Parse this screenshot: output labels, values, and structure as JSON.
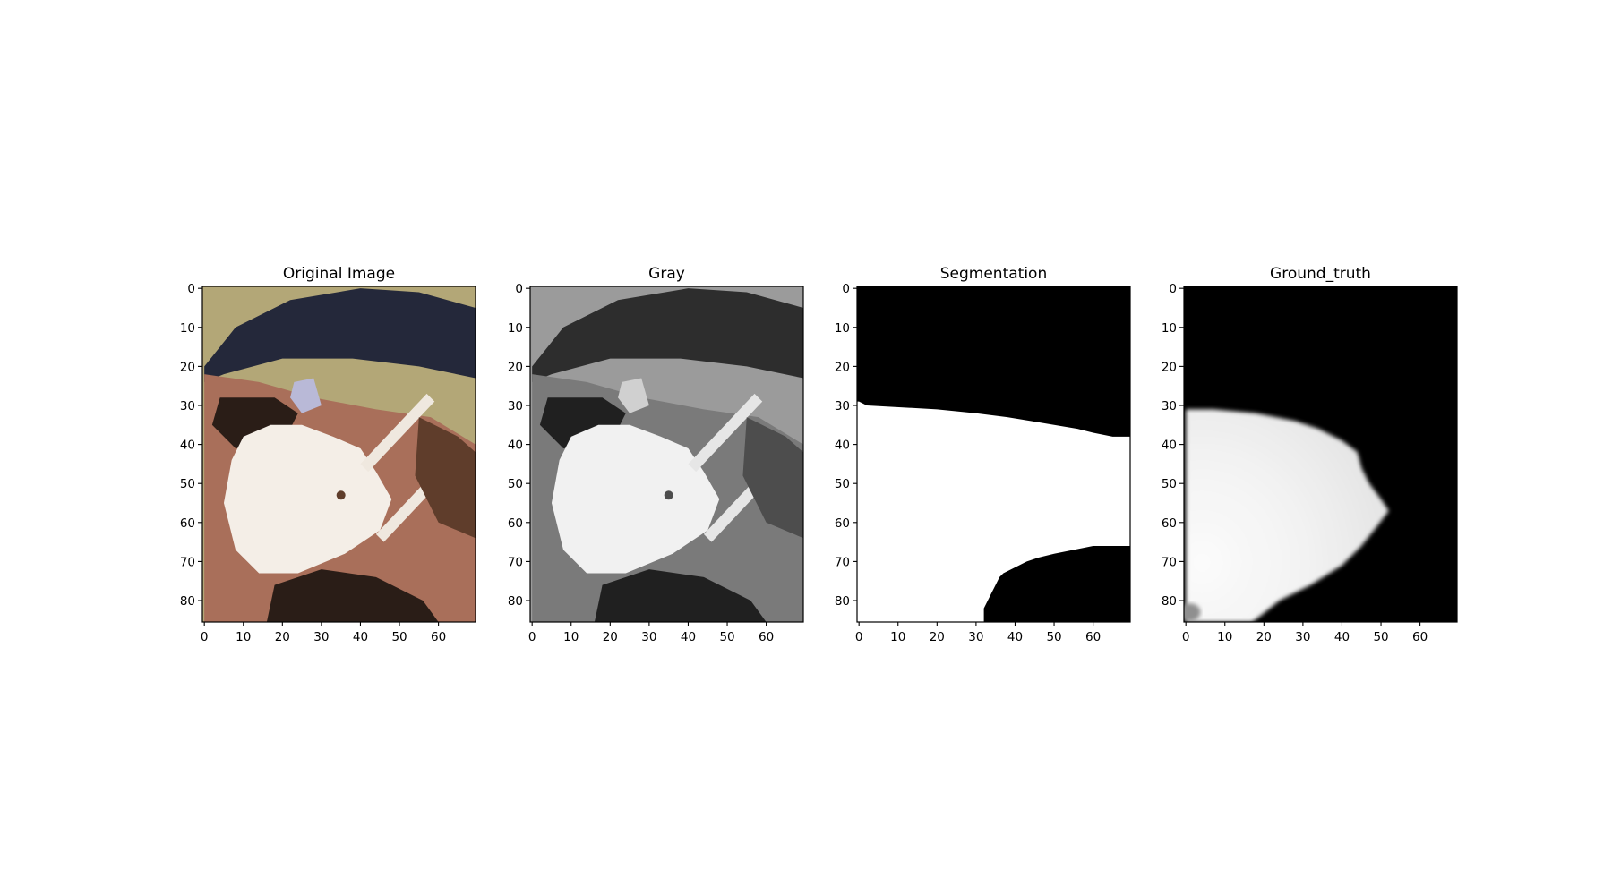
{
  "figure": {
    "panels": [
      {
        "key": "original",
        "title": "Original Image",
        "kind": "image",
        "colors": {
          "background": "#b3a777",
          "cap": "#24283a",
          "skin_dark": "#5f3d2b",
          "skin_light": "#a96f5a",
          "mask": "#f4eee7",
          "strap": "#efe8df",
          "shadow": "#2a1d17",
          "glasses_highlight": "#b9b9d7"
        }
      },
      {
        "key": "gray",
        "title": "Gray",
        "kind": "image",
        "colors": {
          "background": "#9b9b9b",
          "cap": "#2d2d2d",
          "skin_dark": "#4d4d4d",
          "skin_light": "#7a7a7a",
          "mask": "#f1f1f1",
          "strap": "#e6e6e6",
          "shadow": "#202020",
          "glasses_highlight": "#d0d0d0"
        }
      },
      {
        "key": "segmentation",
        "title": "Segmentation",
        "kind": "mask",
        "colors": {
          "foreground": "#ffffff",
          "background": "#000000"
        }
      },
      {
        "key": "ground_truth",
        "title": "Ground_truth",
        "kind": "soft-mask",
        "colors": {
          "foreground": "#f4f4f4",
          "background": "#000000",
          "corner": "#8f8f8f"
        }
      }
    ],
    "axes": {
      "x_ticks": [
        0,
        10,
        20,
        30,
        40,
        50,
        60
      ],
      "y_ticks": [
        0,
        10,
        20,
        30,
        40,
        50,
        60,
        70,
        80
      ],
      "x_range": [
        -0.5,
        69.5
      ],
      "y_range": [
        -0.5,
        85.5
      ]
    },
    "segmentation_boundary": {
      "upper_edge": [
        {
          "x": 0,
          "y": 29
        },
        {
          "x": 2,
          "y": 30
        },
        {
          "x": 20,
          "y": 31
        },
        {
          "x": 30,
          "y": 32
        },
        {
          "x": 38,
          "y": 33
        },
        {
          "x": 44,
          "y": 34
        },
        {
          "x": 50,
          "y": 35
        },
        {
          "x": 56,
          "y": 36
        },
        {
          "x": 60,
          "y": 37
        },
        {
          "x": 65,
          "y": 38
        },
        {
          "x": 69.5,
          "y": 38
        }
      ],
      "lower_edge": [
        {
          "x": 69.5,
          "y": 66
        },
        {
          "x": 60,
          "y": 66
        },
        {
          "x": 55,
          "y": 67
        },
        {
          "x": 50,
          "y": 68
        },
        {
          "x": 46,
          "y": 69
        },
        {
          "x": 43,
          "y": 70
        },
        {
          "x": 41,
          "y": 71
        },
        {
          "x": 39,
          "y": 72
        },
        {
          "x": 37,
          "y": 73
        },
        {
          "x": 36,
          "y": 74
        },
        {
          "x": 35,
          "y": 76
        },
        {
          "x": 34,
          "y": 78
        },
        {
          "x": 33,
          "y": 80
        },
        {
          "x": 32,
          "y": 82
        },
        {
          "x": 32,
          "y": 85.5
        }
      ]
    },
    "ground_truth_boundary": [
      {
        "x": 0,
        "y": 31
      },
      {
        "x": 7,
        "y": 31
      },
      {
        "x": 18,
        "y": 32
      },
      {
        "x": 28,
        "y": 34
      },
      {
        "x": 34,
        "y": 36
      },
      {
        "x": 40,
        "y": 39
      },
      {
        "x": 44,
        "y": 42
      },
      {
        "x": 45,
        "y": 46
      },
      {
        "x": 47,
        "y": 50
      },
      {
        "x": 50,
        "y": 54
      },
      {
        "x": 52,
        "y": 57
      },
      {
        "x": 49,
        "y": 61
      },
      {
        "x": 45,
        "y": 66
      },
      {
        "x": 40,
        "y": 71
      },
      {
        "x": 32,
        "y": 76
      },
      {
        "x": 24,
        "y": 80
      },
      {
        "x": 19,
        "y": 84
      },
      {
        "x": 17,
        "y": 85.5
      },
      {
        "x": 0,
        "y": 85.5
      }
    ]
  }
}
